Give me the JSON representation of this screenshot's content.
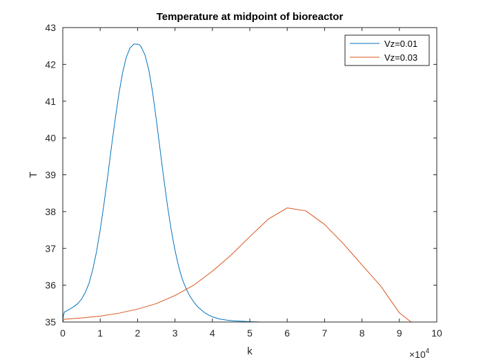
{
  "chart_data": {
    "type": "line",
    "title": "Temperature at midpoint of bioreactor",
    "xlabel": "k",
    "ylabel": "T",
    "x_exponent_label": "×10",
    "x_exponent_power": "4",
    "xlim": [
      0,
      10
    ],
    "ylim": [
      35,
      43
    ],
    "x_ticks": [
      0,
      1,
      2,
      3,
      4,
      5,
      6,
      7,
      8,
      9,
      10
    ],
    "y_ticks": [
      35,
      36,
      37,
      38,
      39,
      40,
      41,
      42,
      43
    ],
    "grid": false,
    "legend_position": "top-right",
    "series": [
      {
        "name": "Vz=0.01",
        "color": "#0072BD",
        "x": [
          0,
          0.02,
          0.05,
          0.1,
          0.2,
          0.3,
          0.4,
          0.5,
          0.6,
          0.7,
          0.8,
          0.9,
          1.0,
          1.1,
          1.2,
          1.3,
          1.4,
          1.5,
          1.6,
          1.7,
          1.8,
          1.9,
          2.0,
          2.05,
          2.1,
          2.2,
          2.3,
          2.4,
          2.5,
          2.6,
          2.7,
          2.8,
          2.9,
          3.0,
          3.1,
          3.2,
          3.3,
          3.4,
          3.5,
          3.6,
          3.7,
          3.8,
          3.9,
          4.0,
          4.2,
          4.4,
          4.6,
          4.8,
          5.0,
          5.3,
          5.6,
          6.0,
          7.0,
          8.0,
          9.0,
          10.0
        ],
        "y": [
          35.0,
          35.2,
          35.28,
          35.3,
          35.36,
          35.42,
          35.5,
          35.62,
          35.8,
          36.05,
          36.42,
          36.9,
          37.5,
          38.2,
          38.95,
          39.75,
          40.5,
          41.2,
          41.78,
          42.2,
          42.45,
          42.55,
          42.55,
          42.53,
          42.47,
          42.25,
          41.85,
          41.25,
          40.5,
          39.7,
          38.9,
          38.15,
          37.5,
          36.95,
          36.5,
          36.15,
          35.9,
          35.7,
          35.55,
          35.42,
          35.33,
          35.25,
          35.19,
          35.14,
          35.08,
          35.05,
          35.03,
          35.02,
          35.01,
          35.0,
          35.0,
          35.0,
          35.0,
          35.0,
          35.0,
          35.0
        ]
      },
      {
        "name": "Vz=0.03",
        "color": "#D95319",
        "x": [
          0,
          0.02,
          0.05,
          0.1,
          0.5,
          1.0,
          1.5,
          2.0,
          2.5,
          3.0,
          3.5,
          4.0,
          4.5,
          5.0,
          5.5,
          6.0,
          6.5,
          7.0,
          7.5,
          8.0,
          8.5,
          9.0,
          9.5,
          10.0
        ],
        "y": [
          35.0,
          35.05,
          35.07,
          35.08,
          35.11,
          35.16,
          35.24,
          35.35,
          35.5,
          35.72,
          36.0,
          36.38,
          36.82,
          37.32,
          37.8,
          38.1,
          38.02,
          37.65,
          37.13,
          36.55,
          35.98,
          35.25,
          34.85,
          34.43
        ]
      }
    ]
  }
}
